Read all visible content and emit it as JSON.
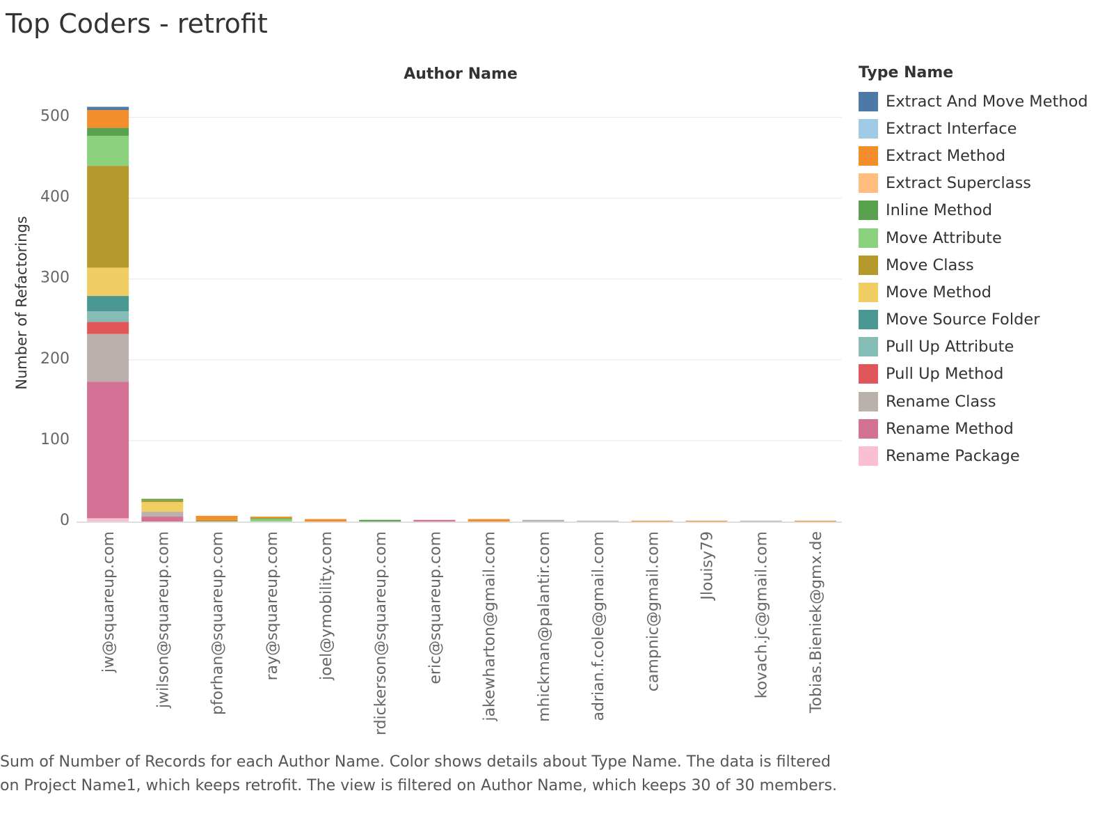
{
  "title": "Top Coders - retrofit",
  "caption": "Sum of Number of Records for each Author Name.  Color shows details about Type Name. The data is filtered on Project Name1, which keeps retrofit. The view is filtered on Author Name, which keeps 30 of 30 members.",
  "legend": {
    "title": "Type Name",
    "items": [
      {
        "label": "Extract And Move Method",
        "color": "#4e79a7"
      },
      {
        "label": "Extract Interface",
        "color": "#a0cbe8"
      },
      {
        "label": "Extract Method",
        "color": "#f28e2b"
      },
      {
        "label": "Extract Superclass",
        "color": "#ffbe7d"
      },
      {
        "label": "Inline Method",
        "color": "#59a14f"
      },
      {
        "label": "Move Attribute",
        "color": "#8cd17d"
      },
      {
        "label": "Move Class",
        "color": "#b6992d"
      },
      {
        "label": "Move Method",
        "color": "#f1ce63"
      },
      {
        "label": "Move Source Folder",
        "color": "#499894"
      },
      {
        "label": "Pull Up Attribute",
        "color": "#86bcb6"
      },
      {
        "label": "Pull Up Method",
        "color": "#e15759"
      },
      {
        "label": "Rename Class",
        "color": "#bab0ac"
      },
      {
        "label": "Rename Method",
        "color": "#d37295"
      },
      {
        "label": "Rename Package",
        "color": "#fabfd2"
      }
    ]
  },
  "chart_data": {
    "type": "bar",
    "stacked": true,
    "header": "Author Name",
    "ylabel": "Number of Refactorings",
    "ylim": [
      0,
      520
    ],
    "yticks": [
      0,
      100,
      200,
      300,
      400,
      500
    ],
    "grid": true,
    "legend_position": "right",
    "categories": [
      "jw@squareup.com",
      "jwilson@squareup.com",
      "pforhan@squareup.com",
      "ray@squareup.com",
      "joel@ymobility.com",
      "rdickerson@squareup.com",
      "eric@squareup.com",
      "jakewharton@gmail.com",
      "mhickman@palantir.com",
      "adrian.f.cole@gmail.com",
      "campnic@gmail.com",
      "Jlouisy79",
      "kovach.jc@gmail.com",
      "Tobias.Bieniek@gmx.de"
    ],
    "series": [
      {
        "name": "Rename Package",
        "values": [
          4,
          0,
          0,
          0,
          0,
          0,
          0,
          0,
          0,
          0,
          0,
          0,
          0,
          0
        ]
      },
      {
        "name": "Rename Method",
        "values": [
          169,
          6,
          0,
          0,
          0,
          0,
          2,
          0,
          0,
          0,
          0,
          0,
          0,
          0
        ]
      },
      {
        "name": "Rename Class",
        "values": [
          59,
          6,
          0,
          0,
          0,
          0,
          0,
          0,
          2,
          1,
          0,
          0,
          1,
          0
        ]
      },
      {
        "name": "Pull Up Method",
        "values": [
          15,
          0,
          0,
          0,
          0,
          0,
          0,
          0,
          0,
          0,
          0,
          0,
          0,
          0
        ]
      },
      {
        "name": "Pull Up Attribute",
        "values": [
          13,
          0,
          0,
          0,
          0,
          0,
          0,
          0,
          0,
          0,
          0,
          0,
          0,
          0
        ]
      },
      {
        "name": "Move Source Folder",
        "values": [
          19,
          0,
          0,
          0,
          0,
          0,
          0,
          0,
          0,
          0,
          0,
          0,
          0,
          0
        ]
      },
      {
        "name": "Move Method",
        "values": [
          35,
          12,
          0,
          0,
          0,
          0,
          0,
          0,
          0,
          0,
          0,
          0,
          0,
          0
        ]
      },
      {
        "name": "Move Class",
        "values": [
          126,
          2,
          2,
          0,
          0,
          0,
          0,
          0,
          0,
          0,
          0,
          0,
          0,
          0
        ]
      },
      {
        "name": "Move Attribute",
        "values": [
          37,
          0,
          0,
          3,
          0,
          0,
          0,
          0,
          0,
          0,
          0,
          0,
          0,
          0
        ]
      },
      {
        "name": "Inline Method",
        "values": [
          10,
          2,
          0,
          1,
          0,
          2,
          0,
          0,
          0,
          0,
          0,
          0,
          0,
          0
        ]
      },
      {
        "name": "Extract Superclass",
        "values": [
          0,
          0,
          0,
          0,
          0,
          0,
          0,
          0,
          0,
          0,
          0,
          0,
          0,
          0
        ]
      },
      {
        "name": "Extract Method",
        "values": [
          22,
          0,
          5,
          2,
          3,
          0,
          0,
          3,
          0,
          0,
          1,
          1,
          0,
          1
        ]
      },
      {
        "name": "Extract Interface",
        "values": [
          0,
          0,
          0,
          0,
          0,
          0,
          0,
          0,
          0,
          0,
          0,
          0,
          0,
          0
        ]
      },
      {
        "name": "Extract And Move Method",
        "values": [
          4,
          0,
          0,
          0,
          0,
          0,
          0,
          0,
          0,
          0,
          0,
          0,
          0,
          0
        ]
      }
    ]
  }
}
